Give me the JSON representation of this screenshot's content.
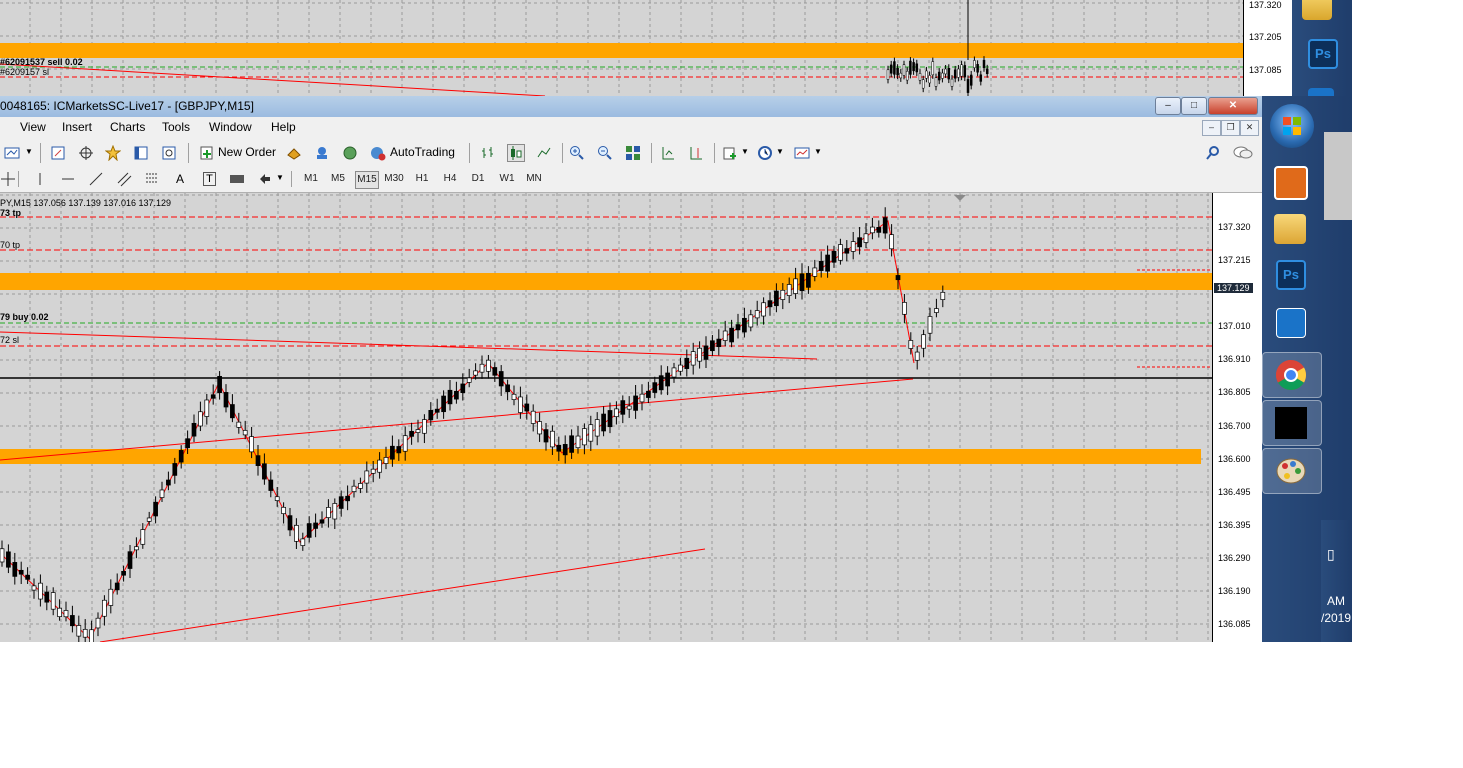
{
  "background_chart": {
    "price_labels": [
      "137.320",
      "137.205",
      "137.085"
    ],
    "order_labels": [
      "#62091537 sell 0.02",
      "#6209157 sl"
    ]
  },
  "window": {
    "title": "0048165: ICMarketsSC-Live17 - [GBPJPY,M15]",
    "minimize": "–",
    "maximize": "□",
    "close": "✕"
  },
  "menu": {
    "items": [
      "View",
      "Insert",
      "Charts",
      "Tools",
      "Window",
      "Help"
    ],
    "mdi_minimize": "–",
    "mdi_restore": "❐",
    "mdi_close": "✕"
  },
  "toolbar": {
    "new_order": "New Order",
    "autotrading": "AutoTrading"
  },
  "drawing_toolbar": {
    "text_tool": "A",
    "label_tool": "T"
  },
  "timeframes": [
    "M1",
    "M5",
    "M15",
    "M30",
    "H1",
    "H4",
    "D1",
    "W1",
    "MN"
  ],
  "selected_timeframe": "M15",
  "chart": {
    "info": "PY,M15  137.056 137.139 137.016 137.129",
    "labels": {
      "tp1": "73 tp",
      "tp2": "70 tp",
      "buy": "79 buy 0.02",
      "sl": "72 sl"
    },
    "current_price": "137.129",
    "price_axis": [
      "137.320",
      "137.215",
      "137.010",
      "136.910",
      "136.805",
      "136.700",
      "136.600",
      "136.495",
      "136.395",
      "136.290",
      "136.190",
      "136.085"
    ]
  },
  "taskbar": {
    "clock_time": "AM",
    "clock_date": "/2019",
    "icons": [
      "windows-start-icon",
      "media-player-icon",
      "folder-icon",
      "photoshop-icon",
      "app-icon",
      "chrome-icon",
      "icmarkets-icon",
      "paint-icon"
    ]
  },
  "colors": {
    "chart_bg": "#d4d4d4",
    "zone": "#ffa500",
    "trend_line": "#ff0000",
    "taskbar": "#1f3d6b"
  }
}
